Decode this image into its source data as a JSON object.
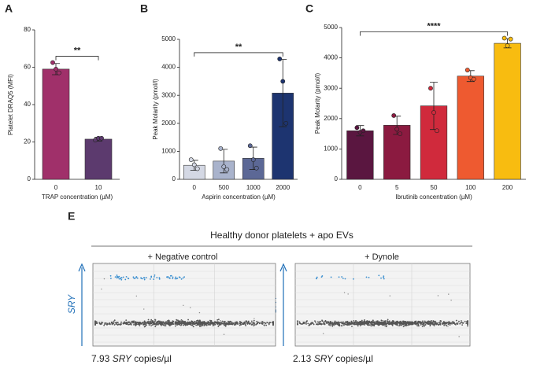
{
  "chart_data": [
    {
      "type": "bar",
      "panel": "A",
      "y_label": "Platelet DRAQ5 (MFI)",
      "x_label": "TRAP concentration (µM)",
      "significance": "**",
      "categories": [
        "0",
        "10"
      ],
      "values": [
        59,
        21.5
      ],
      "errors": [
        3,
        1
      ],
      "points": [
        [
          62.5,
          59,
          57
        ],
        [
          21,
          22,
          22
        ]
      ],
      "colors": [
        "#a0306a",
        "#5c3a6e"
      ],
      "ylim": [
        0,
        80
      ],
      "yticks": [
        0,
        20,
        40,
        60,
        80
      ]
    },
    {
      "type": "bar",
      "panel": "B",
      "y_label": "Peak Molarity (pmol/l)",
      "x_label": "Aspirin concentration (µM)",
      "significance": "**",
      "categories": [
        "0",
        "500",
        "1000",
        "2000"
      ],
      "values": [
        500,
        650,
        750,
        3080
      ],
      "errors": [
        180,
        420,
        400,
        1200
      ],
      "points": [
        [
          700,
          520,
          380
        ],
        [
          1100,
          450,
          350
        ],
        [
          1200,
          700,
          400
        ],
        [
          4300,
          3500,
          2000
        ]
      ],
      "colors": [
        "#d4d8e4",
        "#a9b3cc",
        "#5c6896",
        "#1d3470"
      ],
      "ylim": [
        0,
        5000
      ],
      "yticks": [
        0,
        1000,
        2000,
        3000,
        4000,
        5000
      ]
    },
    {
      "type": "bar",
      "panel": "C",
      "y_label": "Peak Molarity (pmol/l)",
      "x_label": "Ibrutinib concentration (µM)",
      "significance": "****",
      "categories": [
        "0",
        "5",
        "50",
        "100",
        "200"
      ],
      "values": [
        1600,
        1780,
        2420,
        3400,
        4480
      ],
      "errors": [
        170,
        300,
        780,
        180,
        150
      ],
      "points": [
        [
          1700,
          1550,
          1600
        ],
        [
          2100,
          1650,
          1500
        ],
        [
          3000,
          2200,
          1600
        ],
        [
          3600,
          3350,
          3300
        ],
        [
          4650,
          4400,
          4620
        ]
      ],
      "colors": [
        "#5a1640",
        "#8b1a40",
        "#d02a3c",
        "#ee5a30",
        "#f8bc10"
      ],
      "ylim": [
        0,
        5000
      ],
      "yticks": [
        0,
        1000,
        2000,
        3000,
        4000,
        5000
      ]
    }
  ],
  "panel_e": {
    "panel": "E",
    "title": "Healthy donor platelets + apo EVs",
    "axis_label": "SRY",
    "plots": [
      {
        "subtitle": "+ Negative control",
        "value": "7.93",
        "gene": "SRY",
        "unit": "copies/µl"
      },
      {
        "subtitle": "+ Dynole",
        "value": "2.13",
        "gene": "SRY",
        "unit": "copies/µl"
      }
    ]
  }
}
